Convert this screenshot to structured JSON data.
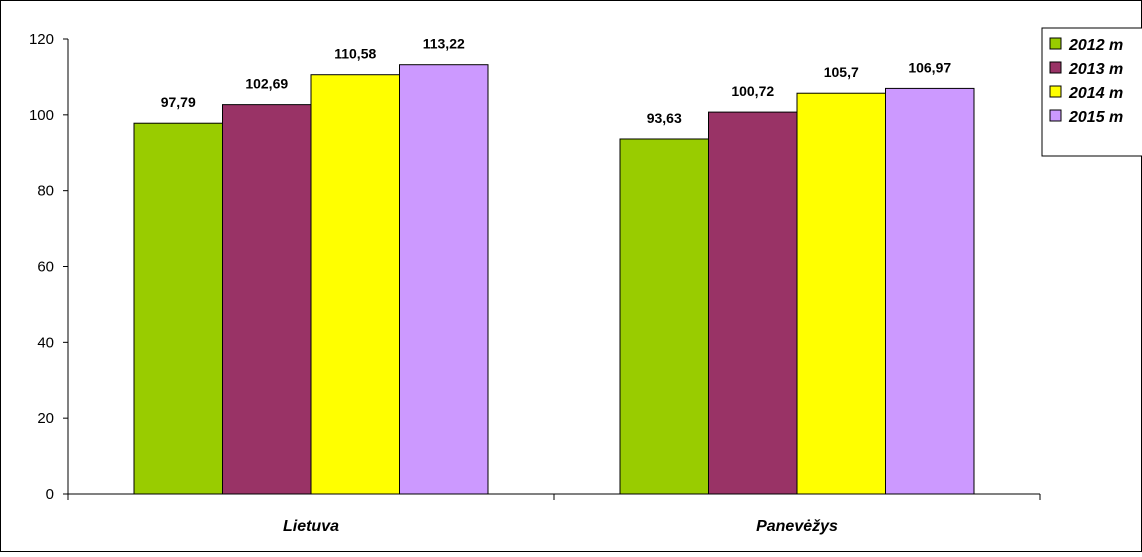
{
  "chart_data": {
    "type": "bar",
    "categories": [
      "Lietuva",
      "Panevėžys"
    ],
    "series": [
      {
        "name": "2012 m",
        "color": "#99cc00",
        "values": [
          97.79,
          93.63
        ],
        "labels": [
          "97,79",
          "93,63"
        ]
      },
      {
        "name": "2013 m",
        "color": "#993366",
        "values": [
          102.69,
          100.72
        ],
        "labels": [
          "102,69",
          "100,72"
        ]
      },
      {
        "name": "2014 m",
        "color": "#ffff00",
        "values": [
          110.58,
          105.7
        ],
        "labels": [
          "110,58",
          "105,7"
        ]
      },
      {
        "name": "2015 m",
        "color": "#cc99ff",
        "values": [
          113.22,
          106.97
        ],
        "labels": [
          "113,22",
          "106,97"
        ]
      }
    ],
    "yticks": [
      "0",
      "20",
      "40",
      "60",
      "80",
      "100",
      "120"
    ],
    "ylim": [
      0,
      120
    ],
    "title": "",
    "xlabel": "",
    "ylabel": "",
    "grid": false,
    "legend_position": "right"
  }
}
